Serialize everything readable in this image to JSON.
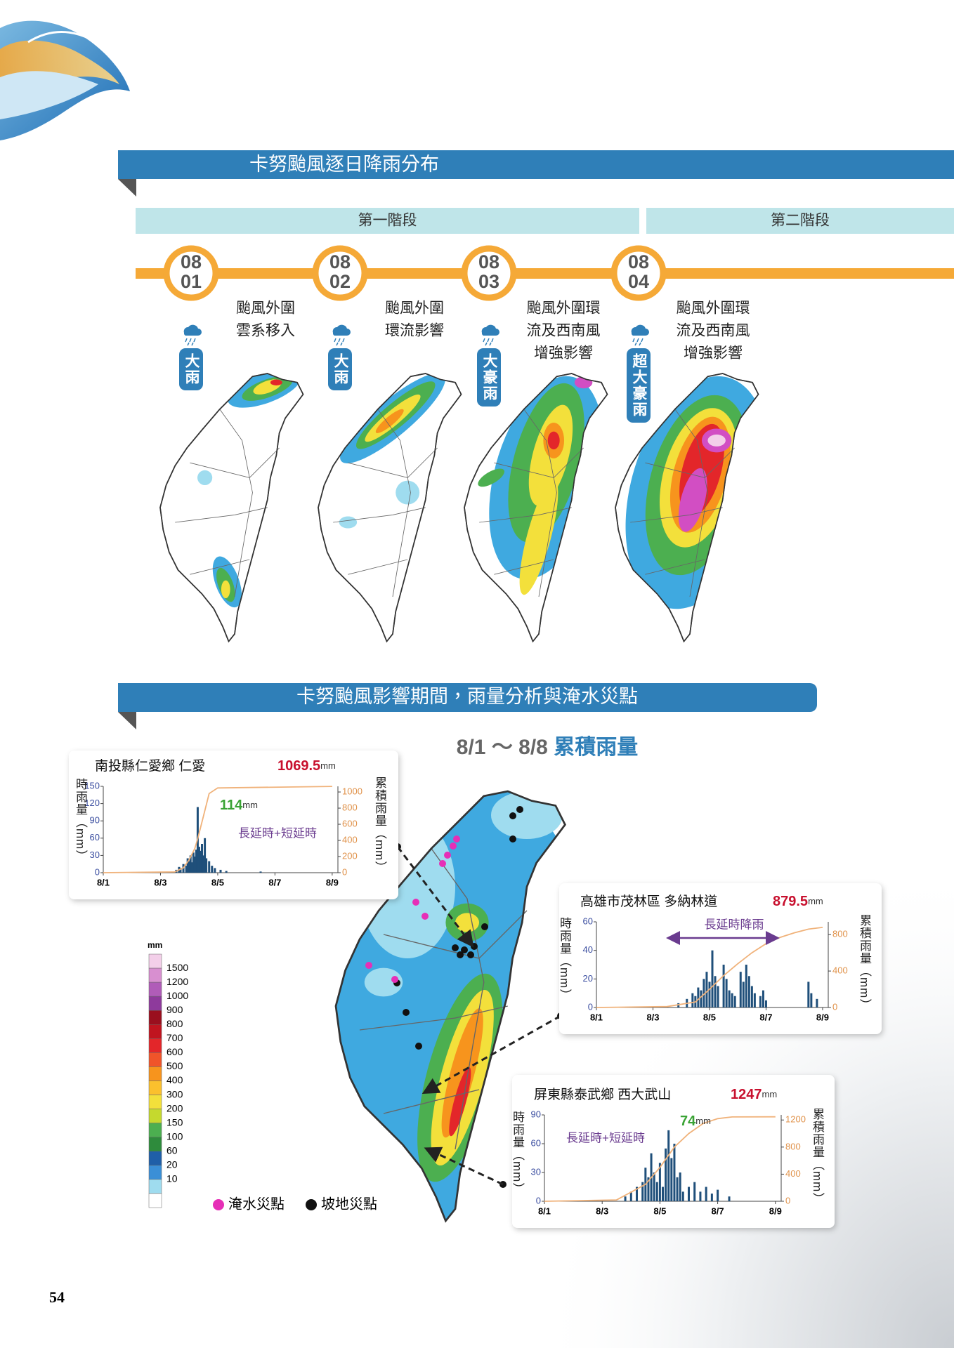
{
  "section1": {
    "title": "卡努颱風逐日降雨分布",
    "phases": [
      "第一階段",
      "第二階段"
    ],
    "days": [
      {
        "month": "08",
        "day": "01",
        "description": [
          "颱風外圍",
          "雲系移入"
        ],
        "badge": "大雨"
      },
      {
        "month": "08",
        "day": "02",
        "description": [
          "颱風外圍",
          "環流影響"
        ],
        "badge": "大雨"
      },
      {
        "month": "08",
        "day": "03",
        "description": [
          "颱風外圍環",
          "流及西南風",
          "增強影響"
        ],
        "badge": "大豪雨"
      },
      {
        "month": "08",
        "day": "04",
        "description": [
          "颱風外圍環",
          "流及西南風",
          "增強影響"
        ],
        "badge": "超大豪雨"
      }
    ]
  },
  "section2": {
    "title": "卡努颱風影響期間，雨量分析與淹水災點",
    "map_title": {
      "dates": "8/1 ～ 8/8",
      "label": "累積雨量"
    },
    "legend": {
      "unit": "mm",
      "levels": [
        1500,
        1200,
        1000,
        900,
        800,
        700,
        600,
        500,
        400,
        300,
        200,
        150,
        100,
        60,
        20,
        10
      ],
      "colors": [
        "#f3cfe9",
        "#d88fd0",
        "#b05cb8",
        "#8e3a9c",
        "#9a0f1e",
        "#c0141f",
        "#e3262a",
        "#f0542a",
        "#f7941d",
        "#fbc02d",
        "#f3e03b",
        "#c5d92e",
        "#4caf50",
        "#2e8b3c",
        "#1f5fa8",
        "#3b8fd6",
        "#9fdcef",
        "#ffffff"
      ]
    },
    "markers": [
      {
        "label": "淹水災點",
        "color": "#e62fb7"
      },
      {
        "label": "坡地災點",
        "color": "#111111"
      }
    ],
    "stations": [
      {
        "name": "南投縣仁愛鄉 仁愛",
        "total": 1069.5,
        "unit": "mm",
        "y_label": "時雨量（mm）",
        "y2_label": "累積雨量（mm）",
        "peak": 114,
        "peak_unit": "mm",
        "annotation": "長延時+短延時",
        "chart": {
          "type": "bar",
          "xlim": [
            1,
            9.2
          ],
          "xticks": [
            {
              "value": 1,
              "label": "8/1"
            },
            {
              "value": 3,
              "label": "8/3"
            },
            {
              "value": 5,
              "label": "8/5"
            },
            {
              "value": 7,
              "label": "8/7"
            },
            {
              "value": 9,
              "label": "8/9"
            }
          ],
          "ylim": [
            0,
            150
          ],
          "yticks": [
            0,
            30,
            60,
            90,
            120,
            150
          ],
          "y2lim": [
            0,
            1070
          ],
          "y2ticks": [
            0,
            200,
            400,
            600,
            800,
            1000
          ],
          "bars": {
            "color": "#1f4f7a",
            "x": [
              3.55,
              3.65,
              3.7,
              3.8,
              3.9,
              3.95,
              4.0,
              4.05,
              4.1,
              4.15,
              4.2,
              4.25,
              4.3,
              4.35,
              4.4,
              4.45,
              4.5,
              4.55,
              4.6,
              4.7,
              4.8,
              4.9,
              5.1,
              5.3,
              6.5
            ],
            "values": [
              5,
              10,
              8,
              15,
              12,
              25,
              20,
              30,
              18,
              35,
              28,
              40,
              114,
              45,
              38,
              50,
              30,
              60,
              25,
              20,
              12,
              8,
              5,
              3,
              2
            ]
          },
          "cumulative": {
            "color": "#f0b27a",
            "axis": "y2",
            "x": [
              1,
              3.5,
              3.8,
              4.0,
              4.2,
              4.3,
              4.5,
              4.7,
              5.0,
              9
            ],
            "values": [
              0,
              10,
              60,
              160,
              300,
              420,
              700,
              980,
              1050,
              1069.5
            ]
          }
        }
      },
      {
        "name": "高雄市茂林區 多納林道",
        "total": 879.5,
        "unit": "mm",
        "y_label": "時雨量（mm）",
        "y2_label": "累積雨量（mm）",
        "annotation": "長延時降雨",
        "chart": {
          "type": "bar",
          "xlim": [
            1,
            9.2
          ],
          "xticks": [
            {
              "value": 1,
              "label": "8/1"
            },
            {
              "value": 3,
              "label": "8/3"
            },
            {
              "value": 5,
              "label": "8/5"
            },
            {
              "value": 7,
              "label": "8/7"
            },
            {
              "value": 9,
              "label": "8/9"
            }
          ],
          "ylim": [
            0,
            60
          ],
          "yticks": [
            0,
            20,
            40,
            60
          ],
          "y2lim": [
            0,
            940
          ],
          "y2ticks": [
            0,
            400,
            800
          ],
          "bars": {
            "color": "#1f4f7a",
            "x": [
              3.9,
              4.2,
              4.4,
              4.5,
              4.6,
              4.7,
              4.8,
              4.9,
              5.0,
              5.1,
              5.2,
              5.3,
              5.5,
              5.6,
              5.7,
              5.8,
              5.9,
              6.1,
              6.2,
              6.3,
              6.4,
              6.5,
              6.6,
              6.8,
              6.9,
              7.0,
              8.5,
              8.6,
              8.8
            ],
            "values": [
              3,
              6,
              10,
              8,
              14,
              12,
              20,
              25,
              18,
              40,
              22,
              15,
              30,
              20,
              12,
              10,
              8,
              25,
              18,
              30,
              22,
              15,
              10,
              8,
              12,
              5,
              18,
              10,
              6
            ]
          },
          "cumulative": {
            "color": "#f0b27a",
            "axis": "y2",
            "x": [
              1,
              3.5,
              4.5,
              5,
              5.5,
              6,
              6.5,
              7,
              7.5,
              8,
              8.5,
              9
            ],
            "values": [
              0,
              10,
              60,
              200,
              350,
              480,
              600,
              700,
              770,
              820,
              860,
              879.5
            ]
          }
        }
      },
      {
        "name": "屏東縣泰武鄉 西大武山",
        "total": 1247,
        "unit": "mm",
        "y_label": "時雨量（mm）",
        "y2_label": "累積雨量（mm）",
        "peak": 74,
        "peak_unit": "mm",
        "annotation": "長延時+短延時",
        "chart": {
          "type": "bar",
          "xlim": [
            1,
            9.2
          ],
          "xticks": [
            {
              "value": 1,
              "label": "8/1"
            },
            {
              "value": 3,
              "label": "8/3"
            },
            {
              "value": 5,
              "label": "8/5"
            },
            {
              "value": 7,
              "label": "8/7"
            },
            {
              "value": 9,
              "label": "8/9"
            }
          ],
          "ylim": [
            0,
            90
          ],
          "yticks": [
            0,
            30,
            60,
            90
          ],
          "y2lim": [
            0,
            1275
          ],
          "y2ticks": [
            0,
            400,
            800,
            1200
          ],
          "bars": {
            "color": "#1f4f7a",
            "x": [
              3.8,
              4.0,
              4.2,
              4.4,
              4.5,
              4.6,
              4.7,
              4.8,
              4.9,
              5.0,
              5.1,
              5.2,
              5.3,
              5.4,
              5.5,
              5.6,
              5.7,
              5.8,
              6.0,
              6.2,
              6.4,
              6.6,
              6.8,
              7.0,
              7.4
            ],
            "values": [
              5,
              10,
              15,
              20,
              35,
              25,
              50,
              30,
              20,
              40,
              15,
              55,
              74,
              45,
              60,
              25,
              30,
              10,
              15,
              20,
              10,
              15,
              8,
              12,
              5
            ]
          },
          "cumulative": {
            "color": "#f0b27a",
            "axis": "y2",
            "x": [
              1,
              3.5,
              4.5,
              5,
              5.5,
              6,
              6.5,
              7,
              7.5,
              9
            ],
            "values": [
              0,
              20,
              250,
              500,
              800,
              1000,
              1150,
              1220,
              1245,
              1247
            ]
          }
        }
      }
    ]
  },
  "page_number": "54"
}
